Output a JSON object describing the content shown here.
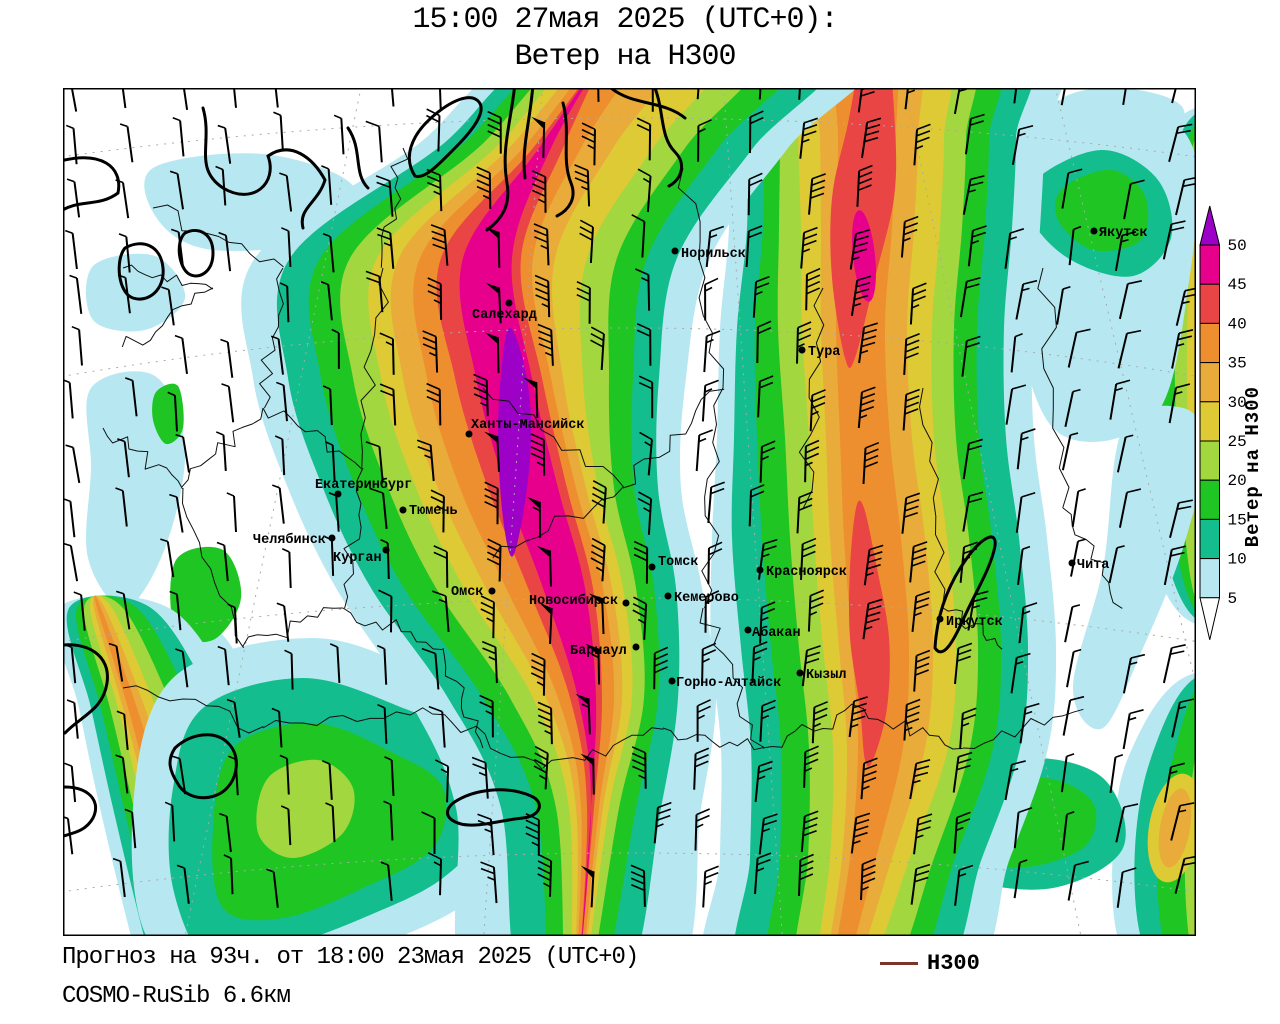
{
  "title": {
    "line1": "15:00 27мая 2025 (UTC+0):",
    "line2": "Ветер на H300"
  },
  "footer": {
    "line1": "Прогноз на 93ч. от 18:00 23мая 2025 (UTC+0)",
    "line2": "COSMO-RuSib 6.6км"
  },
  "legend": {
    "label": "H300",
    "line_color": "#7a342b"
  },
  "colorbar": {
    "title": "Ветер на H300",
    "ticks": [
      50,
      45,
      40,
      35,
      30,
      25,
      20,
      15,
      10,
      5
    ],
    "segments": [
      {
        "name": "purple",
        "range": "50+",
        "color": "#9d00c6"
      },
      {
        "name": "magenta",
        "range": "45-50",
        "color": "#e6008c"
      },
      {
        "name": "red",
        "range": "40-45",
        "color": "#ea4545"
      },
      {
        "name": "orange",
        "range": "35-40",
        "color": "#ee8f2f"
      },
      {
        "name": "amber",
        "range": "30-35",
        "color": "#e9ac3a"
      },
      {
        "name": "yellow",
        "range": "25-30",
        "color": "#ddca35"
      },
      {
        "name": "lime",
        "range": "20-25",
        "color": "#a2d73f"
      },
      {
        "name": "green",
        "range": "15-20",
        "color": "#1fc522"
      },
      {
        "name": "teal",
        "range": "10-15",
        "color": "#14bd8d"
      },
      {
        "name": "cyan",
        "range": "5-10",
        "color": "#b7e8f2"
      },
      {
        "name": "white",
        "range": "<5",
        "color": "#ffffff"
      }
    ]
  },
  "map": {
    "cities": [
      {
        "name": "Норильск",
        "dot": [
          675,
          251
        ],
        "label": [
          681,
          257
        ]
      },
      {
        "name": "Салехард",
        "dot": [
          509,
          303
        ],
        "label": [
          472,
          318
        ]
      },
      {
        "name": "Ханты-Мансийск",
        "dot": [
          469,
          434
        ],
        "label": [
          471,
          428
        ]
      },
      {
        "name": "Екатеринбург",
        "dot": [
          338,
          494
        ],
        "label": [
          315,
          488
        ]
      },
      {
        "name": "Тюмень",
        "dot": [
          403,
          510
        ],
        "label": [
          409,
          514
        ]
      },
      {
        "name": "Челябинск",
        "dot": [
          332,
          538
        ],
        "label": [
          253,
          543
        ]
      },
      {
        "name": "Курган",
        "dot": [
          386,
          550
        ],
        "label": [
          333,
          561
        ]
      },
      {
        "name": "Омск",
        "dot": [
          492,
          591
        ],
        "label": [
          451,
          595
        ]
      },
      {
        "name": "Новосибирск",
        "dot": [
          626,
          603
        ],
        "label": [
          529,
          604
        ]
      },
      {
        "name": "Томск",
        "dot": [
          652,
          567
        ],
        "label": [
          658,
          565
        ]
      },
      {
        "name": "Кемерово",
        "dot": [
          668,
          596
        ],
        "label": [
          674,
          601
        ]
      },
      {
        "name": "Барнаул",
        "dot": [
          636,
          647
        ],
        "label": [
          570,
          654
        ]
      },
      {
        "name": "Горно-Алтайск",
        "dot": [
          672,
          681
        ],
        "label": [
          676,
          686
        ]
      },
      {
        "name": "Абакан",
        "dot": [
          748,
          630
        ],
        "label": [
          752,
          636
        ]
      },
      {
        "name": "Красноярск",
        "dot": [
          760,
          570
        ],
        "label": [
          766,
          575
        ]
      },
      {
        "name": "Кызыл",
        "dot": [
          800,
          673
        ],
        "label": [
          806,
          678
        ]
      },
      {
        "name": "Иркутск",
        "dot": [
          940,
          619
        ],
        "label": [
          946,
          625
        ]
      },
      {
        "name": "Тура",
        "dot": [
          802,
          350
        ],
        "label": [
          808,
          355
        ]
      },
      {
        "name": "Чита",
        "dot": [
          1072,
          563
        ],
        "label": [
          1077,
          568
        ]
      },
      {
        "name": "Якутск",
        "dot": [
          1094,
          231
        ],
        "label": [
          1099,
          236
        ]
      }
    ]
  }
}
